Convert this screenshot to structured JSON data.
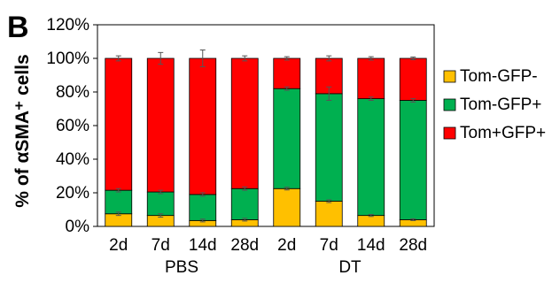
{
  "panel_label": "B",
  "chart_data": {
    "type": "bar",
    "stacked": true,
    "ylabel": "% of αSMA⁺ cells",
    "ylim": [
      0,
      120
    ],
    "yticks": [
      "0%",
      "20%",
      "40%",
      "60%",
      "80%",
      "100%",
      "120%"
    ],
    "ytick_values": [
      0,
      20,
      40,
      60,
      80,
      100,
      120
    ],
    "categories": [
      "2d",
      "7d",
      "14d",
      "28d",
      "2d",
      "7d",
      "14d",
      "28d"
    ],
    "groups": [
      {
        "label": "PBS",
        "start": 0,
        "end": 3
      },
      {
        "label": "DT",
        "start": 4,
        "end": 7
      }
    ],
    "series": [
      {
        "name": "Tom-GFP-",
        "color": "#FFC000",
        "values": [
          7.5,
          6.5,
          3.5,
          4.0,
          22.5,
          15.0,
          6.5,
          4.0
        ],
        "errors": [
          1.0,
          1.0,
          0.8,
          0.8,
          0.8,
          0.8,
          0.6,
          0.5
        ]
      },
      {
        "name": "Tom-GFP+",
        "color": "#00B050",
        "values": [
          14.0,
          14.0,
          15.5,
          18.5,
          59.5,
          64.0,
          69.5,
          71.0
        ],
        "errors": [
          1.0,
          1.0,
          1.0,
          1.0,
          1.0,
          4.0,
          1.0,
          1.0
        ]
      },
      {
        "name": "Tom+GFP+",
        "color": "#FF0000",
        "values": [
          78.5,
          79.5,
          81.0,
          77.5,
          18.0,
          21.0,
          24.0,
          25.0
        ],
        "errors": [
          1.5,
          3.5,
          5.0,
          1.5,
          1.0,
          1.5,
          1.0,
          0.8
        ]
      }
    ],
    "legend_position": "right",
    "grid": false
  }
}
